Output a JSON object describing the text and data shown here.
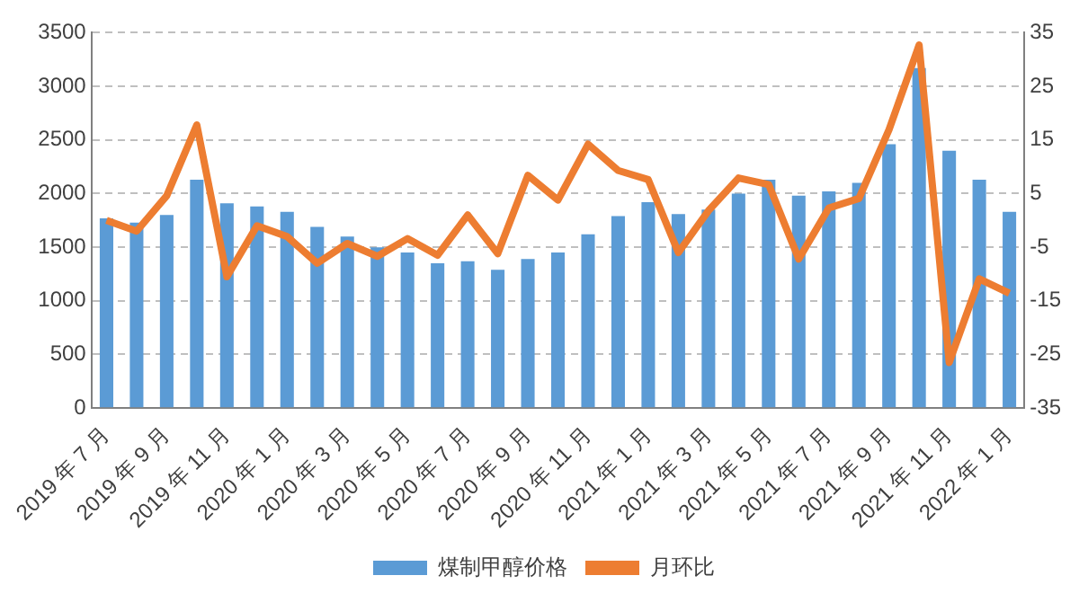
{
  "chart_data": {
    "type": "bar",
    "categories": [
      "2019 年 7 月",
      null,
      "2019 年 9 月",
      null,
      "2019 年 11 月",
      null,
      "2020 年 1 月",
      null,
      "2020 年 3 月",
      null,
      "2020 年 5 月",
      null,
      "2020 年 7 月",
      null,
      "2020 年 9 月",
      null,
      "2020 年 11 月",
      null,
      "2021 年 1 月",
      null,
      "2021 年 3 月",
      null,
      "2021 年 5 月",
      null,
      "2021 年 7 月",
      null,
      "2021 年 9 月",
      null,
      "2021 年 11 月",
      null,
      "2022 年 1 月"
    ],
    "series": [
      {
        "name": "煤制甲醇价格",
        "color": "#5b9bd5",
        "values": [
          1770,
          1730,
          1800,
          2130,
          1910,
          1880,
          1830,
          1690,
          1600,
          1500,
          1450,
          1350,
          1370,
          1290,
          1390,
          1450,
          1620,
          1790,
          1920,
          1810,
          1850,
          2000,
          2130,
          1980,
          2020,
          2100,
          2460,
          3170,
          2400,
          2130,
          1830
        ]
      },
      {
        "name": "月环比",
        "type": "line",
        "axis": "y2",
        "color": "#ed7d31",
        "values": [
          0,
          -2,
          4.6,
          17.8,
          -10.5,
          -1,
          -3,
          -8,
          -4.3,
          -6.7,
          -3.4,
          -6.5,
          1,
          -6.2,
          8.4,
          3.8,
          14.2,
          9.3,
          7.6,
          -6,
          1.8,
          7.9,
          6.7,
          -7.2,
          2.3,
          4.1,
          16.9,
          32.7,
          -26.5,
          -10.9,
          -13.6
        ]
      }
    ],
    "ylim": [
      0,
      3500
    ],
    "yticks": [
      0,
      500,
      1000,
      1500,
      2000,
      2500,
      3000,
      3500
    ],
    "y2lim": [
      -35,
      35
    ],
    "y2ticks": [
      -35,
      -25,
      -15,
      -5,
      5,
      15,
      25,
      35
    ],
    "grid": "y",
    "legend": "bottom",
    "marker": "none",
    "line_style": "solid"
  }
}
